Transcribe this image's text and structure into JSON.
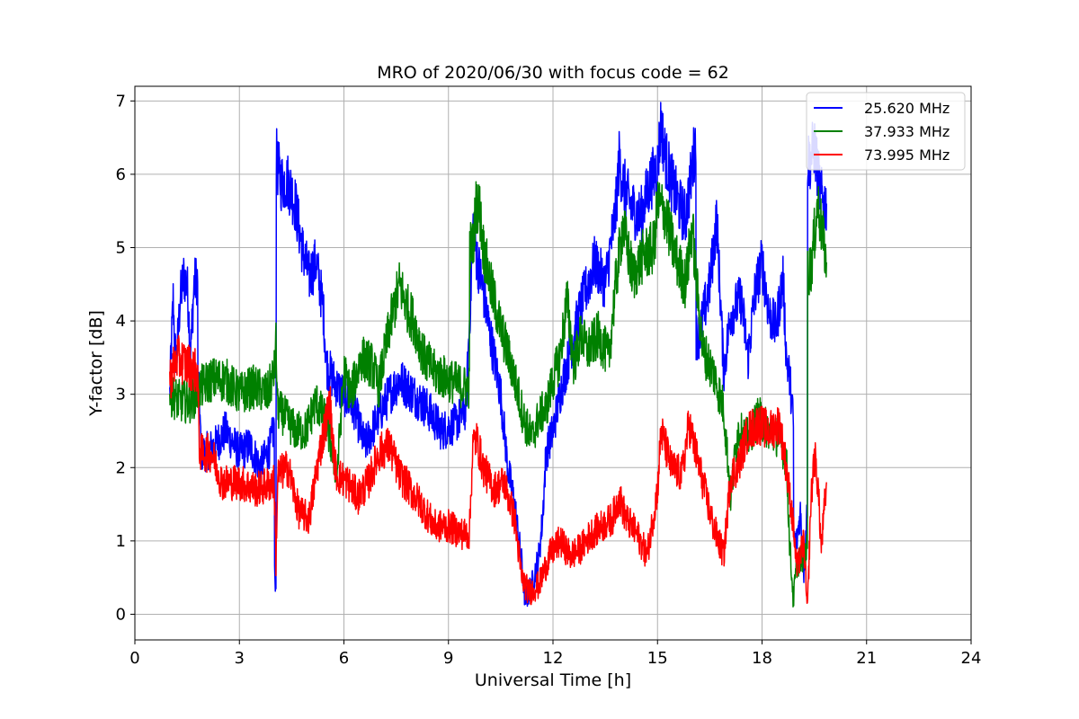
{
  "chart_data": {
    "type": "line",
    "title": "MRO of 2020/06/30 with focus code = 62",
    "xlabel": "Universal Time [h]",
    "ylabel": "Y-factor [dB]",
    "xlim": [
      0,
      24
    ],
    "ylim": [
      -0.35,
      7.2
    ],
    "xticks": [
      0,
      3,
      6,
      9,
      12,
      15,
      18,
      21,
      24
    ],
    "yticks": [
      0,
      1,
      2,
      3,
      4,
      5,
      6,
      7
    ],
    "grid": true,
    "legend_position": "top-right",
    "series": [
      {
        "name": "25.620 MHz",
        "color": "#0000ff",
        "x": [
          1.0,
          1.05,
          1.1,
          1.15,
          1.2,
          1.3,
          1.4,
          1.5,
          1.6,
          1.7,
          1.8,
          1.85,
          1.9,
          2.0,
          2.3,
          2.6,
          3.0,
          3.3,
          3.6,
          3.9,
          4.0,
          4.05,
          4.08,
          4.1,
          4.2,
          4.4,
          4.6,
          4.8,
          5.0,
          5.2,
          5.4,
          5.5,
          5.6,
          5.8,
          6.0,
          6.3,
          6.6,
          7.0,
          7.3,
          7.6,
          8.0,
          8.4,
          8.8,
          9.2,
          9.5,
          9.65,
          9.7,
          9.75,
          9.8,
          10.0,
          10.2,
          10.5,
          10.7,
          10.9,
          11.1,
          11.2,
          11.3,
          11.4,
          11.5,
          11.6,
          11.7,
          11.8,
          12.0,
          12.2,
          12.5,
          12.8,
          13.2,
          13.5,
          13.8,
          13.9,
          14.0,
          14.2,
          14.5,
          14.8,
          15.0,
          15.1,
          15.2,
          15.4,
          15.6,
          15.8,
          16.0,
          16.1,
          16.2,
          16.5,
          16.7,
          16.9,
          17.1,
          17.4,
          17.6,
          17.8,
          18.0,
          18.2,
          18.4,
          18.6,
          18.7,
          18.8,
          18.9,
          19.0,
          19.1,
          19.2,
          19.3,
          19.4,
          19.5,
          19.6,
          19.7,
          19.8,
          19.85
        ],
        "values": [
          3.0,
          3.7,
          4.3,
          3.6,
          3.5,
          4.3,
          4.6,
          4.5,
          3.6,
          4.5,
          4.6,
          3.0,
          2.2,
          2.2,
          2.3,
          2.5,
          2.2,
          2.3,
          2.0,
          2.3,
          2.6,
          0.5,
          6.2,
          6.1,
          5.9,
          5.9,
          5.6,
          5.0,
          4.6,
          4.8,
          4.2,
          3.4,
          3.3,
          3.1,
          3.0,
          2.8,
          2.3,
          2.7,
          3.0,
          3.2,
          3.0,
          2.8,
          2.5,
          2.6,
          2.8,
          4.5,
          5.3,
          5.2,
          4.9,
          4.4,
          3.8,
          3.0,
          2.0,
          1.5,
          0.7,
          0.2,
          0.3,
          0.4,
          0.6,
          0.8,
          1.3,
          2.2,
          2.5,
          3.0,
          3.6,
          4.2,
          4.8,
          4.5,
          5.5,
          6.2,
          5.9,
          5.6,
          5.4,
          5.9,
          6.1,
          6.7,
          6.3,
          5.9,
          5.6,
          5.4,
          6.1,
          6.5,
          3.8,
          4.5,
          5.4,
          3.3,
          4.1,
          4.3,
          3.5,
          4.4,
          4.8,
          4.1,
          3.9,
          4.6,
          3.5,
          3.2,
          2.6,
          1.0,
          1.4,
          0.6,
          1.5,
          6.2,
          6.4,
          6.0,
          5.7,
          5.6,
          5.6
        ]
      },
      {
        "name": "37.933 MHz",
        "color": "#008000",
        "x": [
          1.0,
          1.3,
          1.6,
          1.9,
          2.2,
          2.6,
          3.0,
          3.4,
          3.8,
          4.0,
          4.05,
          4.1,
          4.3,
          4.6,
          4.9,
          5.2,
          5.5,
          5.8,
          6.0,
          6.2,
          6.5,
          6.8,
          7.0,
          7.3,
          7.6,
          7.8,
          8.0,
          8.3,
          8.6,
          9.0,
          9.4,
          9.6,
          9.7,
          9.8,
          9.9,
          10.0,
          10.2,
          10.5,
          10.8,
          11.0,
          11.2,
          11.4,
          11.6,
          11.8,
          12.0,
          12.2,
          12.4,
          12.6,
          12.8,
          13.0,
          13.3,
          13.6,
          13.8,
          14.0,
          14.3,
          14.6,
          14.9,
          15.0,
          15.2,
          15.5,
          15.8,
          16.0,
          16.1,
          16.3,
          16.6,
          16.9,
          17.1,
          17.3,
          17.6,
          17.9,
          18.2,
          18.5,
          18.7,
          18.8,
          18.9,
          19.0,
          19.2,
          19.3,
          19.4,
          19.6,
          19.85
        ],
        "values": [
          3.0,
          2.9,
          2.9,
          3.1,
          3.2,
          3.2,
          3.0,
          3.1,
          3.0,
          3.3,
          3.7,
          2.8,
          2.7,
          2.5,
          2.5,
          2.9,
          2.6,
          1.9,
          3.3,
          3.0,
          3.5,
          3.4,
          3.1,
          3.9,
          4.5,
          4.2,
          4.0,
          3.5,
          3.3,
          3.2,
          3.1,
          3.1,
          5.0,
          5.6,
          5.5,
          5.0,
          4.5,
          3.9,
          3.4,
          3.0,
          2.6,
          2.4,
          2.7,
          2.8,
          3.2,
          3.5,
          4.3,
          3.4,
          3.8,
          3.6,
          3.8,
          3.5,
          4.5,
          5.3,
          4.6,
          4.9,
          5.0,
          5.6,
          5.5,
          4.9,
          4.5,
          5.3,
          4.6,
          3.6,
          3.3,
          2.8,
          1.6,
          2.5,
          2.4,
          2.7,
          2.5,
          2.4,
          2.1,
          0.9,
          0.2,
          0.7,
          0.8,
          0.9,
          4.7,
          5.6,
          4.8
        ]
      },
      {
        "name": "73.995 MHz",
        "color": "#ff0000",
        "x": [
          1.0,
          1.2,
          1.5,
          1.8,
          1.85,
          1.9,
          2.2,
          2.5,
          3.0,
          3.5,
          4.0,
          4.05,
          4.1,
          4.4,
          4.7,
          5.0,
          5.3,
          5.6,
          5.7,
          5.8,
          6.1,
          6.4,
          6.7,
          7.0,
          7.3,
          7.6,
          7.9,
          8.2,
          8.6,
          9.0,
          9.4,
          9.6,
          9.7,
          9.8,
          10.0,
          10.3,
          10.6,
          10.9,
          11.1,
          11.3,
          11.6,
          11.9,
          12.2,
          12.5,
          12.8,
          13.1,
          13.4,
          13.7,
          13.9,
          14.1,
          14.4,
          14.7,
          15.0,
          15.1,
          15.4,
          15.7,
          15.9,
          16.1,
          16.3,
          16.6,
          16.9,
          17.1,
          17.3,
          17.6,
          17.9,
          18.2,
          18.5,
          18.7,
          18.9,
          19.0,
          19.2,
          19.3,
          19.4,
          19.5,
          19.6,
          19.7,
          19.85
        ],
        "values": [
          3.2,
          3.5,
          3.4,
          3.3,
          2.3,
          2.2,
          2.2,
          1.8,
          1.8,
          1.7,
          1.8,
          0.7,
          1.9,
          2.0,
          1.4,
          1.3,
          2.2,
          2.9,
          2.2,
          1.9,
          1.8,
          1.6,
          1.8,
          2.2,
          2.3,
          1.9,
          1.7,
          1.5,
          1.2,
          1.2,
          1.1,
          1.1,
          2.3,
          2.4,
          2.0,
          1.7,
          1.8,
          1.3,
          0.5,
          0.3,
          0.4,
          0.8,
          1.0,
          0.8,
          0.9,
          1.1,
          1.2,
          1.3,
          1.6,
          1.3,
          1.1,
          0.8,
          1.7,
          2.5,
          2.0,
          1.9,
          2.6,
          2.2,
          1.8,
          1.2,
          0.8,
          1.9,
          2.0,
          2.5,
          2.6,
          2.5,
          2.6,
          2.0,
          1.2,
          0.6,
          1.0,
          0.0,
          1.5,
          2.2,
          1.8,
          0.9,
          1.8
        ]
      }
    ]
  }
}
